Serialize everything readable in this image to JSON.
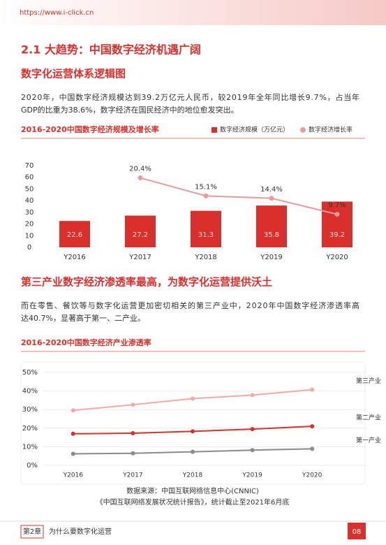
{
  "header": {
    "url": "https://www.i-click.cn"
  },
  "section_title": "2.1 大趋势：中国数字经济机遇广阔",
  "subtitle": "数字化运营体系逻辑图",
  "paragraph1": [
    "2020年，中国数字经济规模达到39.2万亿元人民币，较2019年全年同比增长9.7%，占当年",
    "GDP的比重为38.6%，数字经济在国民经济中的地位愈发突出。"
  ],
  "section2_title": "第三产业数字经济渗透率最高，为数字化运营提供沃土",
  "paragraph2": [
    "而在零售、餐饮等与数字化运营更加密切相关的第三产业中，2020年中国数字经济渗透率高",
    "达40.7%，显著高于第一、二产业。"
  ],
  "chart_data": [
    {
      "type": "bar_line",
      "title": "2016-2020中国数字经济规模及增长率",
      "categories": [
        "Y2016",
        "Y2017",
        "Y2018",
        "Y2019",
        "Y2020"
      ],
      "series": [
        {
          "name": "数字经济规模（万亿元）",
          "color": "#d9302c",
          "values": [
            22.6,
            27.2,
            31.3,
            35.8,
            39.2
          ]
        },
        {
          "name": "数字经济增长率",
          "color": "#e99a9a",
          "axis": "y2",
          "values": [
            null,
            20.4,
            15.1,
            14.4,
            9.7
          ],
          "value_labels": [
            null,
            "20.4%",
            "15.1%",
            "14.4%",
            "9.7%"
          ]
        }
      ],
      "ylim": [
        0,
        70
      ],
      "yticks": [
        0,
        10,
        20,
        30,
        40,
        50,
        60,
        70
      ],
      "y2lim": [
        0,
        24
      ],
      "grid": false
    },
    {
      "type": "line",
      "title": "2016-2020中国数字经济产业渗透率",
      "categories": [
        "Y2016",
        "Y2017",
        "Y2018",
        "Y2019",
        "Y2020"
      ],
      "series": [
        {
          "name": "第三产业",
          "color": "#f2a9a9",
          "values": [
            29.6,
            32.6,
            35.9,
            37.8,
            40.7
          ]
        },
        {
          "name": "第二产业",
          "color": "#d9302c",
          "values": [
            17.0,
            17.3,
            18.3,
            19.5,
            21.0
          ]
        },
        {
          "name": "第一产业",
          "color": "#8a8a8a",
          "values": [
            6.2,
            6.5,
            7.3,
            8.2,
            8.9
          ]
        }
      ],
      "ylim": [
        0,
        50
      ],
      "yticks": [
        {
          "value": 0,
          "label": "0%"
        },
        {
          "value": 10,
          "label": "10%"
        },
        {
          "value": 20,
          "label": "20%"
        },
        {
          "value": 30,
          "label": "30%"
        },
        {
          "value": 40,
          "label": "40%"
        },
        {
          "value": 50,
          "label": "50%"
        }
      ],
      "grid": true
    }
  ],
  "source": [
    "数据来源：中国互联网络信息中心(CNNIC)",
    "《中国互联网络发展状况统计报告》，统计截止至2021年6月底"
  ],
  "footer": {
    "chapter": "第2章",
    "chapter_title": "为什么要数字化运营",
    "page": "08"
  }
}
